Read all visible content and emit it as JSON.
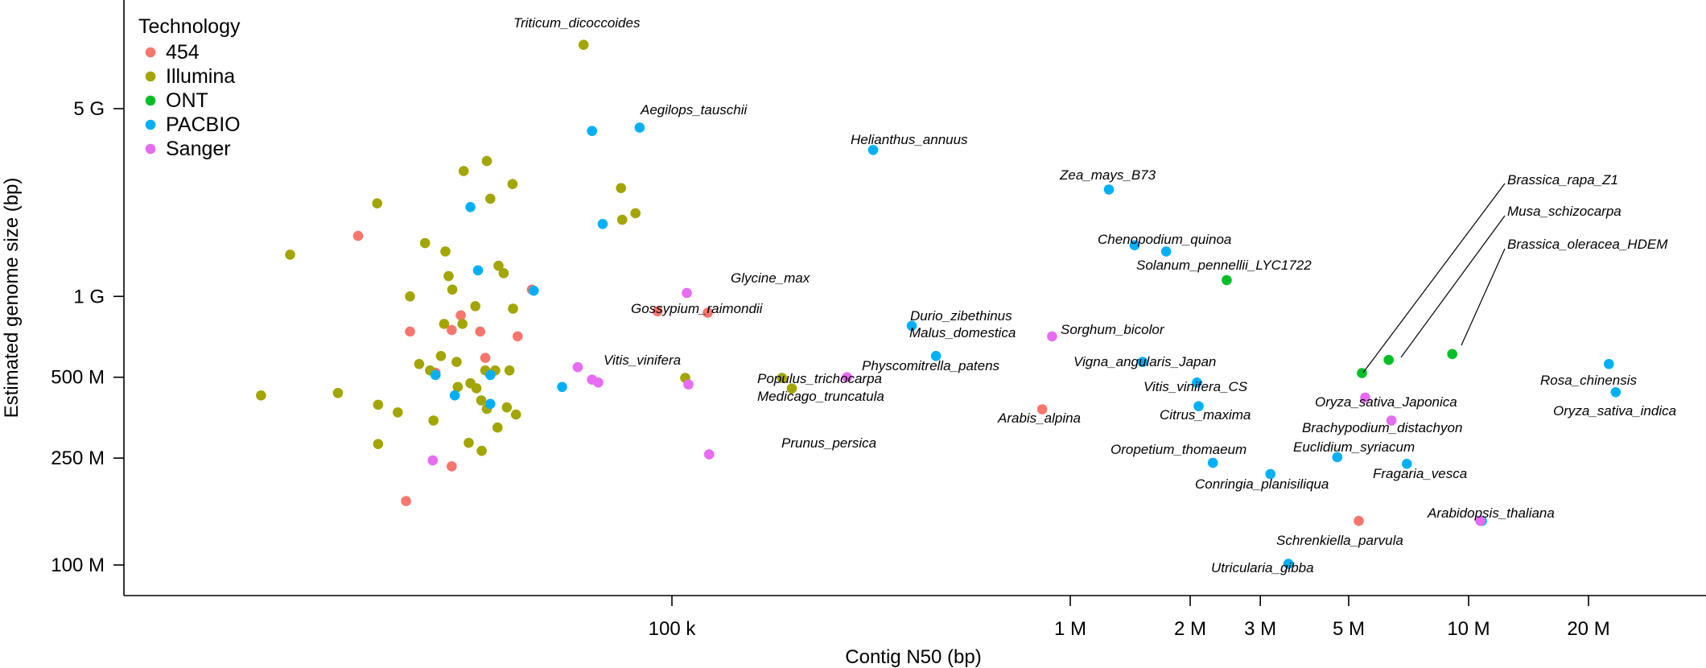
{
  "chart_data": {
    "type": "scatter",
    "xlabel": "Contig N50 (bp)",
    "ylabel": "Estimated genome size (bp)",
    "x_scale": "log",
    "y_scale": "log",
    "xlim": [
      9000,
      35000000
    ],
    "ylim": [
      80000000,
      9500000000
    ],
    "x_ticks": [
      {
        "value": 100000,
        "label": "100 k"
      },
      {
        "value": 1000000,
        "label": "1 M"
      },
      {
        "value": 2000000,
        "label": "2 M"
      },
      {
        "value": 3000000,
        "label": "3 M"
      },
      {
        "value": 5000000,
        "label": "5 M"
      },
      {
        "value": 10000000,
        "label": "10 M"
      },
      {
        "value": 20000000,
        "label": "20 M"
      }
    ],
    "y_ticks": [
      {
        "value": 100000000,
        "label": "100 M"
      },
      {
        "value": 250000000,
        "label": "250 M"
      },
      {
        "value": 500000000,
        "label": "500 M"
      },
      {
        "value": 1000000000,
        "label": "1 G"
      },
      {
        "value": 5000000000,
        "label": "5 G"
      }
    ],
    "grid": false,
    "legend": {
      "title": "Technology",
      "position": "top-left",
      "entries": [
        {
          "name": "454",
          "color": "#F8766D"
        },
        {
          "name": "Illumina",
          "color": "#A3A500"
        },
        {
          "name": "ONT",
          "color": "#00BF26"
        },
        {
          "name": "PACBIO",
          "color": "#00B0F6"
        },
        {
          "name": "Sanger",
          "color": "#E76BF3"
        }
      ]
    },
    "series": [
      {
        "name": "454",
        "color": "#F8766D",
        "points": [
          [
            16300,
            1680000000
          ],
          [
            21500,
            173000000
          ],
          [
            22000,
            740000000
          ],
          [
            25500,
            520000000
          ],
          [
            28000,
            750000000
          ],
          [
            28000,
            233000000
          ],
          [
            29500,
            850000000
          ],
          [
            33000,
            740000000
          ],
          [
            34000,
            590000000
          ],
          [
            41000,
            710000000
          ],
          [
            44500,
            1060000000
          ],
          [
            92000,
            880000000
          ],
          [
            123000,
            870000000
          ],
          [
            850000,
            380000000
          ],
          [
            5300000,
            146000000
          ]
        ]
      },
      {
        "name": "Illumina",
        "color": "#A3A500",
        "points": [
          [
            9300,
            428000000
          ],
          [
            11000,
            1430000000
          ],
          [
            14500,
            437000000
          ],
          [
            18200,
            2220000000
          ],
          [
            18300,
            395000000
          ],
          [
            18300,
            282000000
          ],
          [
            20500,
            370000000
          ],
          [
            22000,
            1000000000
          ],
          [
            23200,
            560000000
          ],
          [
            24000,
            1580000000
          ],
          [
            24700,
            530000000
          ],
          [
            25200,
            345000000
          ],
          [
            26300,
            600000000
          ],
          [
            26800,
            790000000
          ],
          [
            27000,
            1470000000
          ],
          [
            27500,
            1190000000
          ],
          [
            28100,
            1060000000
          ],
          [
            28800,
            570000000
          ],
          [
            29000,
            460000000
          ],
          [
            29800,
            790000000
          ],
          [
            30000,
            2930000000
          ],
          [
            30900,
            285000000
          ],
          [
            31200,
            475000000
          ],
          [
            32100,
            920000000
          ],
          [
            32300,
            455000000
          ],
          [
            33200,
            410000000
          ],
          [
            33300,
            266000000
          ],
          [
            34000,
            530000000
          ],
          [
            34300,
            381000000
          ],
          [
            34300,
            3190000000
          ],
          [
            35000,
            2310000000
          ],
          [
            36000,
            530000000
          ],
          [
            36500,
            325000000
          ],
          [
            36700,
            1300000000
          ],
          [
            37800,
            1220000000
          ],
          [
            38500,
            386000000
          ],
          [
            39100,
            530000000
          ],
          [
            39800,
            2620000000
          ],
          [
            39900,
            900000000
          ],
          [
            40600,
            363000000
          ],
          [
            60000,
            8640000000
          ],
          [
            74500,
            2530000000
          ],
          [
            75000,
            1930000000
          ],
          [
            81000,
            2040000000
          ],
          [
            108000,
            497000000
          ],
          [
            189000,
            497000000
          ],
          [
            200000,
            454000000
          ]
        ]
      },
      {
        "name": "ONT",
        "color": "#00BF26",
        "points": [
          [
            2470000,
            1150000000
          ],
          [
            5400000,
            518000000
          ],
          [
            6300000,
            580000000
          ],
          [
            9100000,
            610000000
          ]
        ]
      },
      {
        "name": "PACBIO",
        "color": "#00B0F6",
        "points": [
          [
            25500,
            510000000
          ],
          [
            28500,
            428000000
          ],
          [
            31200,
            2150000000
          ],
          [
            32600,
            1250000000
          ],
          [
            35000,
            510000000
          ],
          [
            35000,
            398000000
          ],
          [
            45000,
            1050000000
          ],
          [
            53000,
            460000000
          ],
          [
            63000,
            4130000000
          ],
          [
            67000,
            1860000000
          ],
          [
            83000,
            4250000000
          ],
          [
            320000,
            3510000000
          ],
          [
            400000,
            777000000
          ],
          [
            460000,
            600000000
          ],
          [
            1250000,
            2500000000
          ],
          [
            1450000,
            1550000000
          ],
          [
            1520000,
            570000000
          ],
          [
            1740000,
            1470000000
          ],
          [
            2080000,
            478000000
          ],
          [
            2100000,
            390000000
          ],
          [
            2280000,
            240000000
          ],
          [
            3180000,
            218000000
          ],
          [
            3530000,
            101000000
          ],
          [
            4680000,
            252000000
          ],
          [
            7000000,
            238000000
          ],
          [
            10800000,
            146000000
          ],
          [
            22500000,
            560000000
          ],
          [
            23400000,
            440000000
          ]
        ]
      },
      {
        "name": "Sanger",
        "color": "#E76BF3",
        "points": [
          [
            25100,
            245000000
          ],
          [
            58000,
            545000000
          ],
          [
            63000,
            490000000
          ],
          [
            65300,
            478000000
          ],
          [
            109000,
            1030000000
          ],
          [
            110000,
            470000000
          ],
          [
            124000,
            258000000
          ],
          [
            275000,
            500000000
          ],
          [
            900000,
            710000000
          ],
          [
            5500000,
            420000000
          ],
          [
            6400000,
            345000000
          ],
          [
            10700000,
            146000000
          ]
        ]
      }
    ],
    "annotations": [
      "Triticum_dicoccoides",
      "Aegilops_tauschii",
      "Helianthus_annuus",
      "Zea_mays_B73",
      "Brassica_rapa_Z1",
      "Musa_schizocarpa",
      "Brassica_oleracea_HDEM",
      "Chenopodium_quinoa",
      "Solanum_pennellii_LYC1722",
      "Glycine_max",
      "Gossypium_raimondii",
      "Durio_zibethinus",
      "Malus_domestica",
      "Sorghum_bicolor",
      "Vitis_vinifera",
      "Physcomitrella_patens",
      "Vigna_angularis_Japan",
      "Populus_trichocarpa",
      "Medicago_truncatula",
      "Vitis_vinifera_CS",
      "Rosa_chinensis",
      "Oryza_sativa_indica",
      "Oryza_sativa_Japonica",
      "Arabis_alpina",
      "Citrus_maxima",
      "Brachypodium_distachyon",
      "Prunus_persica",
      "Euclidium_syriacum",
      "Oropetium_thomaeum",
      "Fragaria_vesca",
      "Conringia_planisiliqua",
      "Arabidopsis_thaliana",
      "Schrenkiella_parvula",
      "Utricularia_gibba"
    ]
  }
}
